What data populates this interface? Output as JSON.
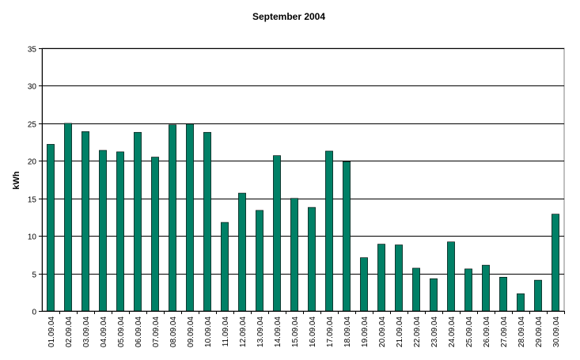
{
  "chart_data": {
    "type": "bar",
    "title": "September 2004",
    "xlabel": "",
    "ylabel": "kWh",
    "ylim": [
      0,
      35
    ],
    "yticks": [
      0,
      5,
      10,
      15,
      20,
      25,
      30,
      35
    ],
    "grid": true,
    "legend": "none",
    "bar_color": "#008066",
    "categories": [
      "01.09.04",
      "02.09.04",
      "03.09.04",
      "04.09.04",
      "05.09.04",
      "06.09.04",
      "07.09.04",
      "08.09.04",
      "09.09.04",
      "10.09.04",
      "11.09.04",
      "12.09.04",
      "13.09.04",
      "14.09.04",
      "15.09.04",
      "16.09.04",
      "17.09.04",
      "18.09.04",
      "19.09.04",
      "20.09.04",
      "21.09.04",
      "22.09.04",
      "23.09.04",
      "24.09.04",
      "25.09.04",
      "26.09.04",
      "27.09.04",
      "28.09.04",
      "29.09.04",
      "30.09.04"
    ],
    "values": [
      22.2,
      25.0,
      23.9,
      21.4,
      21.2,
      23.8,
      20.5,
      24.8,
      24.9,
      23.8,
      11.8,
      15.7,
      13.4,
      20.7,
      15.0,
      13.8,
      21.3,
      19.9,
      7.1,
      8.9,
      8.8,
      5.7,
      4.3,
      9.2,
      5.6,
      6.1,
      4.5,
      2.3,
      4.1,
      12.9
    ]
  }
}
